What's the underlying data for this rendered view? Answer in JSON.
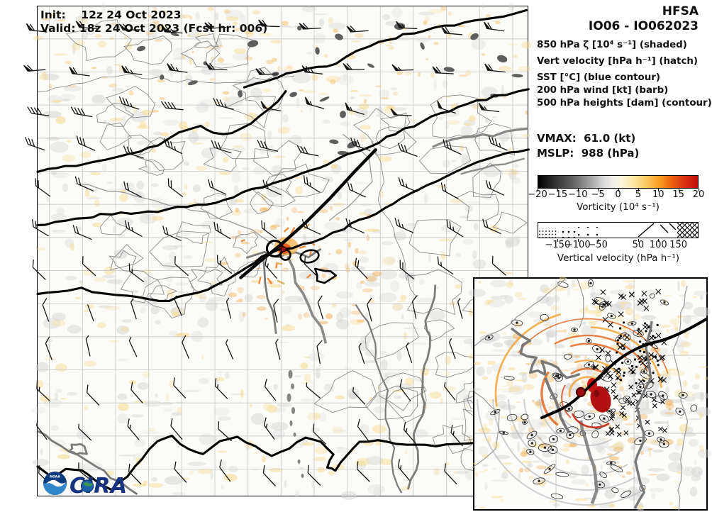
{
  "header": {
    "init": "Init:    12z 24 Oct 2023",
    "valid": "Valid: 18z 24 Oct 2023 (Fcst hr: 006)"
  },
  "panel": {
    "model": "HFSA",
    "storm": "IO06 - IO062023",
    "legend": [
      "850 hPa ζ [10⁴ s⁻¹] (shaded)",
      "Vert velocity [hPa h⁻¹] (hatch)",
      "SST [°C] (blue contour)",
      "200 hPa wind [kt] (barb)",
      "500 hPa heights [dam] (contour)"
    ],
    "vmax": "VMAX:  61.0 (kt)",
    "mslp": "MSLP:  988 (hPa)"
  },
  "colorbar": {
    "title": "Vorticity (10⁴ s⁻¹)",
    "ticks": [
      "−20",
      "−15",
      "−10",
      "−5",
      "0",
      "5",
      "10",
      "15",
      "20"
    ]
  },
  "hatchbar": {
    "title": "Vertical velocity (hPa h⁻¹)",
    "ticks": [
      {
        "label": "−150",
        "pos": 12.5
      },
      {
        "label": "−100",
        "pos": 25
      },
      {
        "label": "−50",
        "pos": 37.5
      },
      {
        "label": "50",
        "pos": 62.5
      },
      {
        "label": "100",
        "pos": 75
      },
      {
        "label": "150",
        "pos": 87.5
      }
    ]
  },
  "logos": {
    "noaa": "NOAA",
    "cira": "CIRA"
  }
}
